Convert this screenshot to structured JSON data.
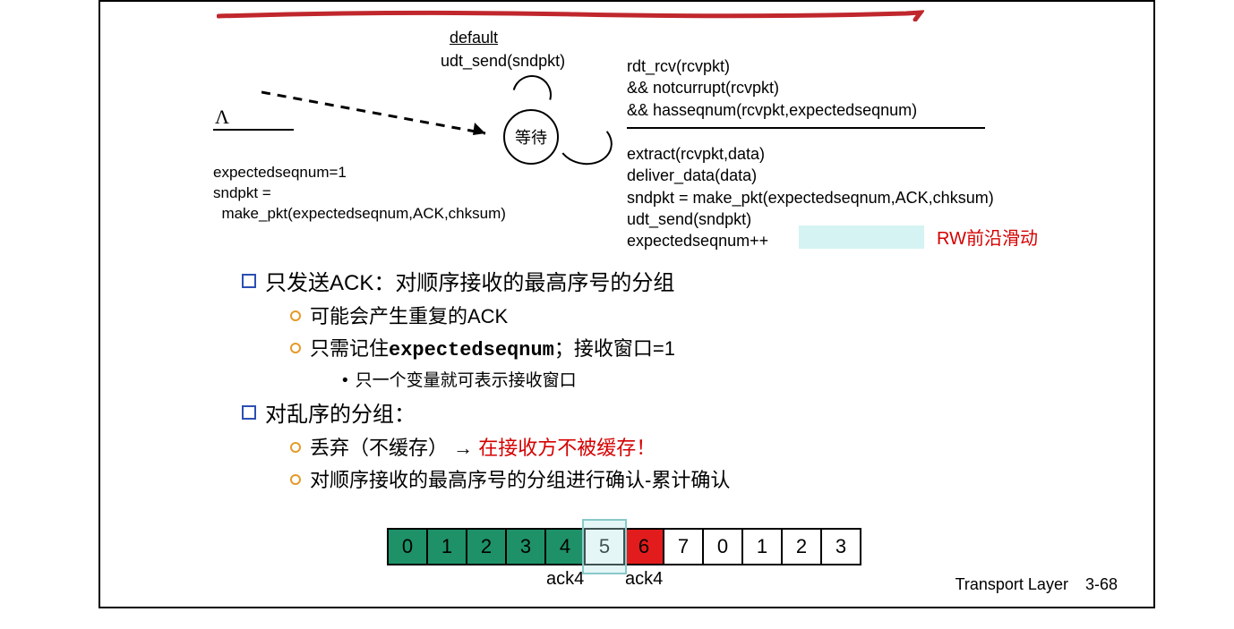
{
  "colors": {
    "red_marker": "#c0272d",
    "bullet_square": "#2c4fb3",
    "bullet_circle": "#e59a28",
    "text_red": "#d40000",
    "highlight_bg": "#d5f3f3",
    "seq_green": "#1e9168",
    "seq_red": "#e21c1c",
    "window_border": "#88c9c9"
  },
  "fsm": {
    "default_label": "default",
    "default_action": "udt_send(sndpkt)",
    "state_label": "等待",
    "lambda": "Λ",
    "init_l1": "expectedseqnum=1",
    "init_l2": "sndpkt =",
    "init_l3": "  make_pkt(expectedseqnum,ACK,chksum)",
    "event_l1": "rdt_rcv(rcvpkt)",
    "event_l2": " && notcurrupt(rcvpkt)",
    "event_l3": " && hasseqnum(rcvpkt,expectedseqnum)",
    "action_l1": "extract(rcvpkt,data)",
    "action_l2": "deliver_data(data)",
    "action_l3": "sndpkt = make_pkt(expectedseqnum,ACK,chksum)",
    "action_l4": "udt_send(sndpkt)",
    "action_l5": "expectedseqnum++",
    "rw_label": "RW前沿滑动"
  },
  "bullets": {
    "b1a": "只发送ACK：对顺序接收的最高序号的分组",
    "b2a": "可能会产生重复的ACK",
    "b2b_pre": "只需记住",
    "b2b_mono": "expectedseqnum",
    "b2b_post": "；接收窗口=1",
    "b3a": "只一个变量就可表示接收窗口",
    "b1b": "对乱序的分组：",
    "b2c_pre": "丢弃（不缓存） → ",
    "b2c_red": "在接收方不被缓存！",
    "b2d": "对顺序接收的最高序号的分组进行确认-累计确认"
  },
  "sequence": {
    "cells": [
      {
        "n": "0",
        "fill": "green"
      },
      {
        "n": "1",
        "fill": "green"
      },
      {
        "n": "2",
        "fill": "green"
      },
      {
        "n": "3",
        "fill": "green"
      },
      {
        "n": "4",
        "fill": "green"
      },
      {
        "n": "5",
        "fill": "white"
      },
      {
        "n": "6",
        "fill": "redcell"
      },
      {
        "n": "7",
        "fill": "white"
      },
      {
        "n": "0",
        "fill": "white"
      },
      {
        "n": "1",
        "fill": "white"
      },
      {
        "n": "2",
        "fill": "white"
      },
      {
        "n": "3",
        "fill": "white"
      }
    ],
    "window_cell_index": 5,
    "ack1_text": "ack4",
    "ack1_cell": 4,
    "ack2_text": "ack4",
    "ack2_cell": 6
  },
  "footer": {
    "label": "Transport Layer",
    "page": "3-68"
  }
}
